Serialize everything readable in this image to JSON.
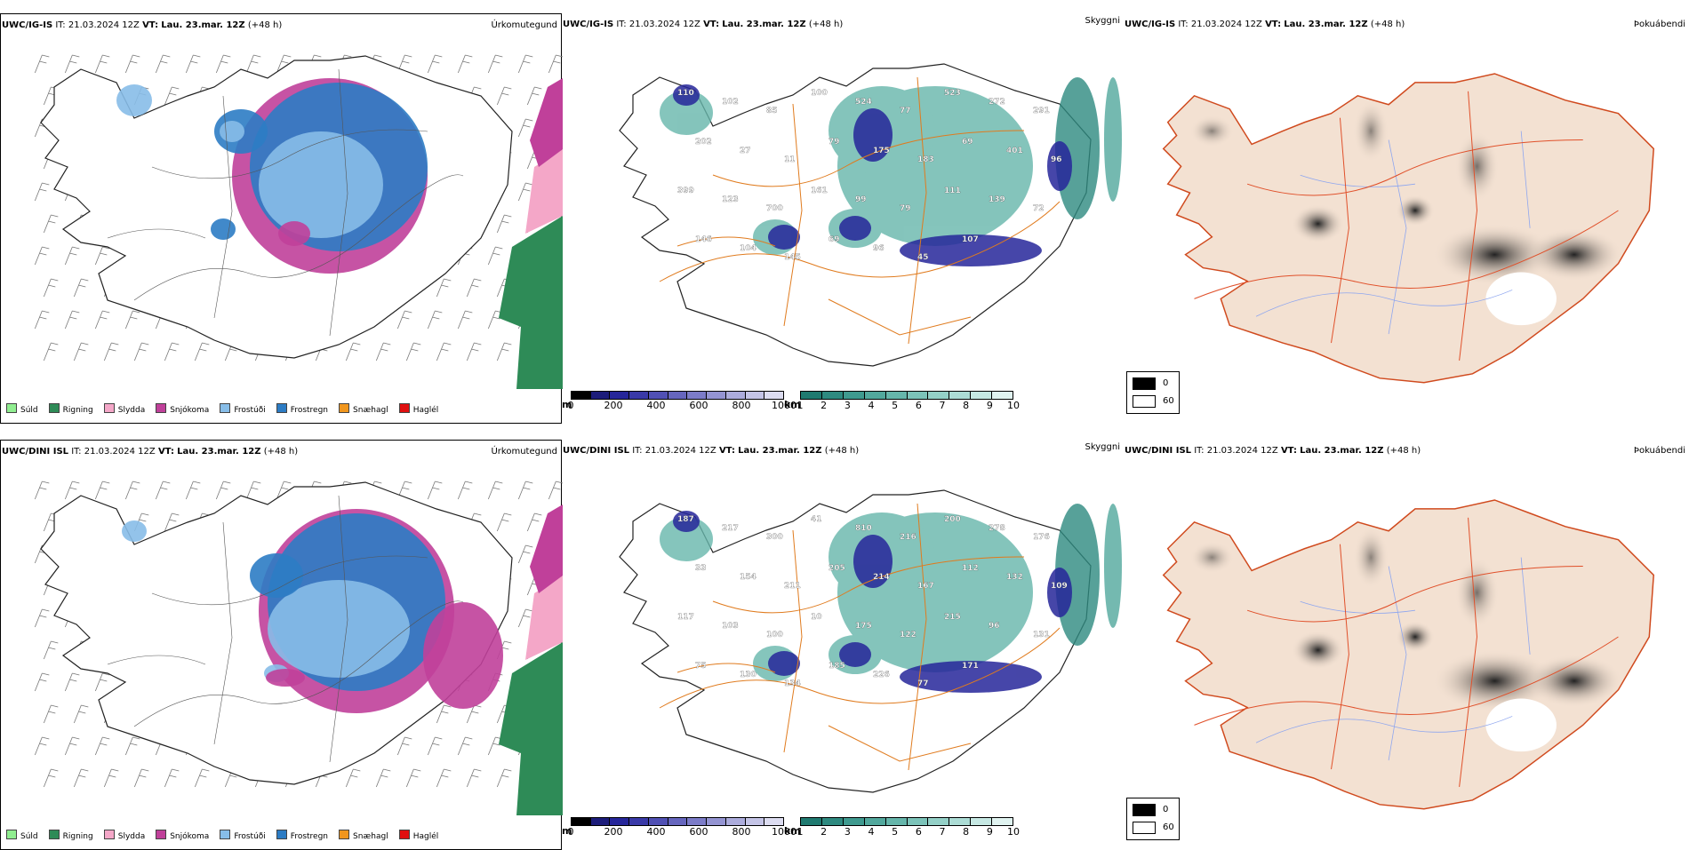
{
  "rows": [
    {
      "model": "UWC/IG-IS",
      "it_label": "IT:",
      "it_value": "21.03.2024 12Z",
      "vt_label": "VT:",
      "vt_value": "Lau. 23.mar. 12Z",
      "lead": "(+48 h)"
    },
    {
      "model": "UWC/DINI ISL",
      "it_label": "IT:",
      "it_value": "21.03.2024 12Z",
      "vt_label": "VT:",
      "vt_value": "Lau. 23.mar. 12Z",
      "lead": "(+48 h)"
    }
  ],
  "panels": {
    "precip_title": "Úrkomutegund",
    "visibility_title": "Skyggni",
    "fog_title": "Þokuábendi"
  },
  "precip_legend": [
    {
      "label": "Súld",
      "color": "#90ee90"
    },
    {
      "label": "Rigning",
      "color": "#2e8b57"
    },
    {
      "label": "Slydda",
      "color": "#f4a7c8"
    },
    {
      "label": "Snjókoma",
      "color": "#c0409a"
    },
    {
      "label": "Frostúði",
      "color": "#87bde8"
    },
    {
      "label": "Frostregn",
      "color": "#2c7cc4"
    },
    {
      "label": "Snæhagl",
      "color": "#f0961e"
    },
    {
      "label": "Haglél",
      "color": "#e01010"
    }
  ],
  "cloudbase_scale": {
    "unit": "m",
    "ticks": [
      "0",
      "200",
      "400",
      "600",
      "800",
      "1000"
    ],
    "colors": [
      "#000000",
      "#1c1c7a",
      "#26269a",
      "#3a3aa8",
      "#5050b4",
      "#6666be",
      "#7c7cc8",
      "#9494d2",
      "#acacdc",
      "#c4c4e6",
      "#dcdcf0"
    ]
  },
  "visibility_scale": {
    "unit": "km",
    "ticks": [
      "1",
      "2",
      "3",
      "4",
      "5",
      "6",
      "7",
      "8",
      "9",
      "10"
    ],
    "colors": [
      "#1f7a70",
      "#2e8a80",
      "#3f9a8f",
      "#52a89d",
      "#66b6ab",
      "#7cc3b9",
      "#94d0c7",
      "#acdcd5",
      "#c6e8e3",
      "#e0f3f0"
    ]
  },
  "fog_legend": [
    {
      "label": "0",
      "color": "#000000"
    },
    {
      "label": "60",
      "color": "#ffffff"
    }
  ],
  "labels_row1": [
    "110",
    "102",
    "85",
    "100",
    "524",
    "77",
    "523",
    "272",
    "291",
    "202",
    "27",
    "11",
    "79",
    "175",
    "183",
    "69",
    "401",
    "96",
    "399",
    "123",
    "700",
    "161",
    "99",
    "79",
    "111",
    "139",
    "72",
    "146",
    "104",
    "145",
    "69",
    "96",
    "45",
    "107"
  ],
  "labels_row2": [
    "187",
    "217",
    "300",
    "41",
    "810",
    "216",
    "200",
    "278",
    "176",
    "33",
    "154",
    "211",
    "205",
    "214",
    "167",
    "112",
    "132",
    "109",
    "117",
    "103",
    "100",
    "10",
    "175",
    "122",
    "215",
    "96",
    "131",
    "75",
    "130",
    "134",
    "185",
    "226",
    "77",
    "171"
  ]
}
